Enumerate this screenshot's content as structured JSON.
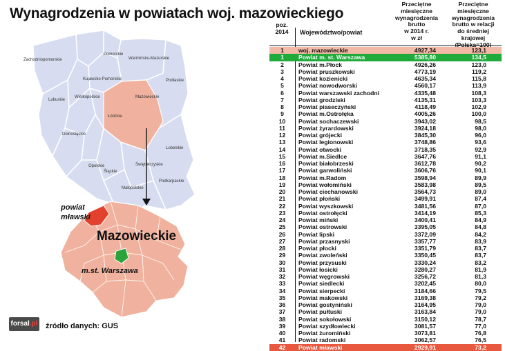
{
  "title": "Wynagrodzenia w powiatach woj. mazowieckiego",
  "source": "źródło danych: GUS",
  "logo": {
    "prefix": "forsal",
    "suffix": ".pl"
  },
  "map": {
    "regions": [
      "Pomorskie",
      "Zachodniopomorskie",
      "Warmińsko-Mazurskie",
      "Kujawsko-Pomorskie",
      "Podlaskie",
      "Lubuskie",
      "Wielkopolskie",
      "Mazowieckie",
      "Łódzkie",
      "Dolnośląskie",
      "Lubelskie",
      "Opolskie",
      "Świętokrzyskie",
      "Śląskie",
      "Podkarpackie",
      "Małopolskie"
    ],
    "big_label": "Mazowieckie",
    "mlawa_label_1": "powiat",
    "mlawa_label_2": "mławski",
    "warsaw_label": "m.st. Warszawa",
    "colors": {
      "voivodeships": "#d7dcf0",
      "mazowieckie": "#f0b29e",
      "warsaw": "#2aa33b",
      "mlawa": "#e2412d"
    }
  },
  "table": {
    "headers": {
      "rank": [
        "poz.",
        "2014"
      ],
      "name": "Województwo/powiat",
      "wage": [
        "Przeciętne",
        "miesięczne",
        "wynagrodzenia",
        "brutto",
        "w 2014 r.",
        "w zł"
      ],
      "ratio": [
        "Przeciętne",
        "miesięczne",
        "wynagrodzenia",
        "brutto w relacji",
        "do średniej krajowej",
        "(Polska=100)"
      ]
    },
    "rows": [
      {
        "rank": "1",
        "name": "woj. mazowieckie",
        "wage": "4927,34",
        "ratio": "123,1",
        "hl": "pink"
      },
      {
        "rank": "1",
        "name": "Powiat m. st. Warszawa",
        "wage": "5385,80",
        "ratio": "134,5",
        "hl": "green"
      },
      {
        "rank": "2",
        "name": "Powiat m.Płock",
        "wage": "4926,26",
        "ratio": "123,0"
      },
      {
        "rank": "3",
        "name": "Powiat pruszkowski",
        "wage": "4773,19",
        "ratio": "119,2"
      },
      {
        "rank": "4",
        "name": "Powiat kozienicki",
        "wage": "4635,34",
        "ratio": "115,8"
      },
      {
        "rank": "5",
        "name": "Powiat nowodworski",
        "wage": "4560,17",
        "ratio": "113,9"
      },
      {
        "rank": "6",
        "name": "Powiat warszawski zachodni",
        "wage": "4335,48",
        "ratio": "108,3"
      },
      {
        "rank": "7",
        "name": "Powiat grodziski",
        "wage": "4135,31",
        "ratio": "103,3"
      },
      {
        "rank": "8",
        "name": "Powiat piaseczyński",
        "wage": "4118,49",
        "ratio": "102,9"
      },
      {
        "rank": "9",
        "name": "Powiat m.Ostrołęka",
        "wage": "4005,26",
        "ratio": "100,0"
      },
      {
        "rank": "10",
        "name": "Powiat sochaczewski",
        "wage": "3943,02",
        "ratio": "98,5"
      },
      {
        "rank": "11",
        "name": "Powiat żyrardowski",
        "wage": "3924,18",
        "ratio": "98,0"
      },
      {
        "rank": "12",
        "name": "Powiat grójecki",
        "wage": "3845,30",
        "ratio": "96,0"
      },
      {
        "rank": "13",
        "name": "Powiat legionowski",
        "wage": "3748,86",
        "ratio": "93,6"
      },
      {
        "rank": "14",
        "name": "Powiat otwocki",
        "wage": "3718,35",
        "ratio": "92,9"
      },
      {
        "rank": "15",
        "name": "Powiat m.Siedlce",
        "wage": "3647,76",
        "ratio": "91,1"
      },
      {
        "rank": "16",
        "name": "Powiat białobrzeski",
        "wage": "3612,78",
        "ratio": "90,2"
      },
      {
        "rank": "17",
        "name": "Powiat garwoliński",
        "wage": "3606,76",
        "ratio": "90,1"
      },
      {
        "rank": "18",
        "name": "Powiat m.Radom",
        "wage": "3598,94",
        "ratio": "89,9"
      },
      {
        "rank": "19",
        "name": "Powiat wołomiński",
        "wage": "3583,98",
        "ratio": "89,5"
      },
      {
        "rank": "20",
        "name": "Powiat ciechanowski",
        "wage": "3564,73",
        "ratio": "89,0"
      },
      {
        "rank": "21",
        "name": "Powiat płoński",
        "wage": "3499,91",
        "ratio": "87,4"
      },
      {
        "rank": "22",
        "name": "Powiat wyszkowski",
        "wage": "3481,56",
        "ratio": "87,0"
      },
      {
        "rank": "23",
        "name": "Powiat ostrołęcki",
        "wage": "3414,19",
        "ratio": "85,3"
      },
      {
        "rank": "24",
        "name": "Powiat miński",
        "wage": "3400,41",
        "ratio": "84,9"
      },
      {
        "rank": "25",
        "name": "Powiat ostrowski",
        "wage": "3395,05",
        "ratio": "84,8"
      },
      {
        "rank": "26",
        "name": "Powiat lipski",
        "wage": "3372,09",
        "ratio": "84,2"
      },
      {
        "rank": "27",
        "name": "Powiat przasnyski",
        "wage": "3357,77",
        "ratio": "83,9"
      },
      {
        "rank": "28",
        "name": "Powiat płocki",
        "wage": "3351,79",
        "ratio": "83,7"
      },
      {
        "rank": "29",
        "name": "Powiat zwoleński",
        "wage": "3350,45",
        "ratio": "83,7"
      },
      {
        "rank": "30",
        "name": "Powiat przysuski",
        "wage": "3330,24",
        "ratio": "83,2"
      },
      {
        "rank": "31",
        "name": "Powiat łosicki",
        "wage": "3280,27",
        "ratio": "81,9"
      },
      {
        "rank": "32",
        "name": "Powiat węgrowski",
        "wage": "3256,72",
        "ratio": "81,3"
      },
      {
        "rank": "33",
        "name": "Powiat siedlecki",
        "wage": "3202,45",
        "ratio": "80,0"
      },
      {
        "rank": "34",
        "name": "Powiat sierpecki",
        "wage": "3184,66",
        "ratio": "79,5"
      },
      {
        "rank": "35",
        "name": "Powiat makowski",
        "wage": "3169,38",
        "ratio": "79,2"
      },
      {
        "rank": "36",
        "name": "Powiat gostyniński",
        "wage": "3164,95",
        "ratio": "79,0"
      },
      {
        "rank": "37",
        "name": "Powiat pułtuski",
        "wage": "3163,84",
        "ratio": "79,0"
      },
      {
        "rank": "38",
        "name": "Powiat sokołowski",
        "wage": "3150,12",
        "ratio": "78,7"
      },
      {
        "rank": "39",
        "name": "Powiat szydłowiecki",
        "wage": "3081,57",
        "ratio": "77,0"
      },
      {
        "rank": "40",
        "name": "Powiat żuromiński",
        "wage": "3073,81",
        "ratio": "76,8"
      },
      {
        "rank": "41",
        "name": "Powiat radomski",
        "wage": "3062,57",
        "ratio": "76,5"
      },
      {
        "rank": "42",
        "name": "Powiat mławski",
        "wage": "2929,91",
        "ratio": "73,2",
        "hl": "red"
      }
    ]
  }
}
